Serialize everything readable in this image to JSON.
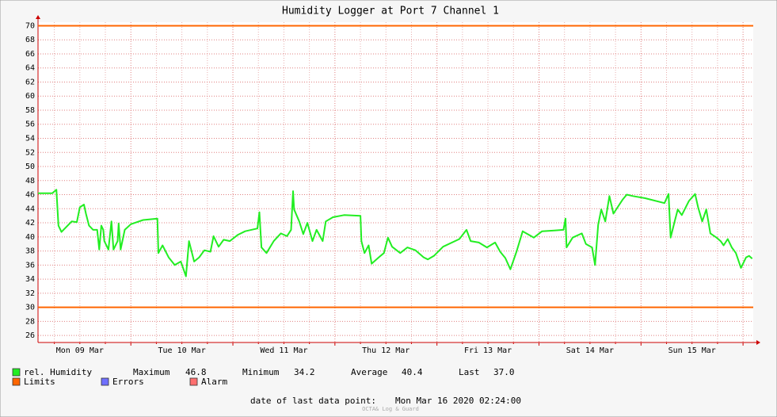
{
  "chart_data": {
    "type": "line",
    "title": "Humidity Logger at Port 7 Channel 1",
    "x": [
      9.09,
      9.23,
      9.27,
      9.29,
      9.32,
      9.38,
      9.42,
      9.47,
      9.5,
      9.54,
      9.56,
      9.59,
      9.63,
      9.67,
      9.69,
      9.71,
      9.73,
      9.74,
      9.78,
      9.81,
      9.83,
      9.87,
      9.88,
      9.9,
      9.94,
      10.0,
      10.12,
      10.26,
      10.27,
      10.31,
      10.37,
      10.43,
      10.49,
      10.54,
      10.57,
      10.62,
      10.67,
      10.72,
      10.78,
      10.81,
      10.86,
      10.91,
      10.97,
      11.05,
      11.12,
      11.24,
      11.26,
      11.28,
      11.33,
      11.4,
      11.47,
      11.53,
      11.57,
      11.59,
      11.6,
      11.65,
      11.69,
      11.73,
      11.78,
      11.82,
      11.88,
      11.91,
      11.98,
      12.09,
      12.25,
      12.26,
      12.29,
      12.33,
      12.36,
      12.43,
      12.48,
      12.52,
      12.56,
      12.64,
      12.71,
      12.79,
      12.87,
      12.91,
      12.97,
      13.06,
      13.22,
      13.29,
      13.33,
      13.41,
      13.49,
      13.57,
      13.62,
      13.67,
      13.72,
      13.78,
      13.84,
      13.9,
      13.95,
      14.03,
      14.15,
      14.24,
      14.26,
      14.27,
      14.33,
      14.42,
      14.46,
      14.52,
      14.55,
      14.58,
      14.61,
      14.65,
      14.69,
      14.73,
      14.77,
      14.82,
      14.86,
      14.92,
      15.04,
      15.23,
      15.27,
      15.29,
      15.33,
      15.36,
      15.4,
      15.47,
      15.53,
      15.56,
      15.6,
      15.64,
      15.68,
      15.74,
      15.78,
      15.81,
      15.85,
      15.89,
      15.93,
      15.98,
      16.03,
      16.06,
      16.09
    ],
    "series": [
      {
        "name": "rel. Humidity",
        "color": "#22ee22",
        "values": [
          46.2,
          46.2,
          46.7,
          41.6,
          40.7,
          41.6,
          42.2,
          42.1,
          44.2,
          44.6,
          43.3,
          41.6,
          41.0,
          41.0,
          38.2,
          41.6,
          41.0,
          39.4,
          38.2,
          42.2,
          38.2,
          39.4,
          41.9,
          38.2,
          41.0,
          41.8,
          42.4,
          42.6,
          37.7,
          38.8,
          37.1,
          36.0,
          36.5,
          34.4,
          39.4,
          36.5,
          37.1,
          38.1,
          37.9,
          40.1,
          38.6,
          39.6,
          39.4,
          40.3,
          40.8,
          41.2,
          43.5,
          38.5,
          37.7,
          39.4,
          40.5,
          40.1,
          41.0,
          46.5,
          43.9,
          42.2,
          40.4,
          42.0,
          39.4,
          41.0,
          39.4,
          42.2,
          42.8,
          43.1,
          43.0,
          39.4,
          37.7,
          38.8,
          36.2,
          37.1,
          37.7,
          39.9,
          38.6,
          37.7,
          38.5,
          38.1,
          37.1,
          36.8,
          37.3,
          38.6,
          39.7,
          41.0,
          39.4,
          39.2,
          38.5,
          39.2,
          37.9,
          37.0,
          35.4,
          37.9,
          40.8,
          40.3,
          39.9,
          40.8,
          40.9,
          41.0,
          42.6,
          38.5,
          39.9,
          40.5,
          39.0,
          38.5,
          36.0,
          41.7,
          43.9,
          42.2,
          45.8,
          43.3,
          44.2,
          45.3,
          46.0,
          45.8,
          45.5,
          44.8,
          46.1,
          39.9,
          42.2,
          43.9,
          43.1,
          45.1,
          46.1,
          44.2,
          42.2,
          43.9,
          40.5,
          39.9,
          39.4,
          38.8,
          39.7,
          38.5,
          37.7,
          35.6,
          37.1,
          37.3,
          36.9
        ]
      }
    ],
    "limits": {
      "name": "Limits",
      "color": "#ff6600",
      "values": [
        30,
        70
      ]
    },
    "legend_extra": [
      {
        "name": "Errors",
        "color": "#7070ff"
      },
      {
        "name": "Alarm",
        "color": "#ff7070"
      }
    ],
    "xlim": [
      9.09,
      16.1
    ],
    "xticks": [
      {
        "value": 9.5,
        "label": "Mon 09 Mar"
      },
      {
        "value": 10.5,
        "label": "Tue 10 Mar"
      },
      {
        "value": 11.5,
        "label": "Wed 11 Mar"
      },
      {
        "value": 12.5,
        "label": "Thu 12 Mar"
      },
      {
        "value": 13.5,
        "label": "Fri 13 Mar"
      },
      {
        "value": 14.5,
        "label": "Sat 14 Mar"
      },
      {
        "value": 15.5,
        "label": "Sun 15 Mar"
      }
    ],
    "ylim": [
      25,
      70.5
    ],
    "yticks": [
      26,
      28,
      30,
      32,
      34,
      36,
      38,
      40,
      42,
      44,
      46,
      48,
      50,
      52,
      54,
      56,
      58,
      60,
      62,
      64,
      66,
      68,
      70
    ],
    "grid": true,
    "stats": {
      "labels": [
        "Maximum",
        "Minimum",
        "Average",
        "Last"
      ],
      "values": [
        46.8,
        34.2,
        40.4,
        37.0
      ],
      "value_labels": [
        "46.8",
        "34.2",
        "40.4",
        "37.0"
      ]
    },
    "footer_label": "date of last data point:",
    "footer_date": "Mon Mar 16 2020 02:24:00",
    "watermark": "OCTA& Log & Guard"
  }
}
